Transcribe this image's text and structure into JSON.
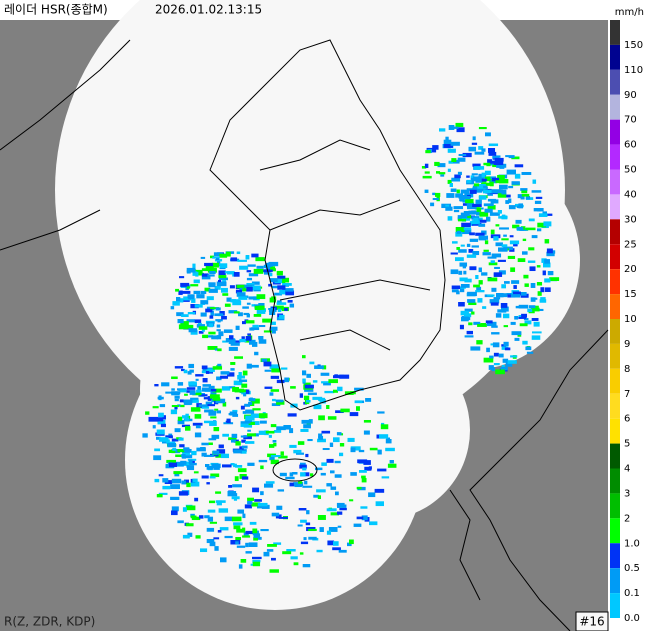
{
  "header": {
    "title": "레이더 HSR(종합M)",
    "time": "2026.01.02.13:15",
    "unit": "mm/h"
  },
  "legend": [
    {
      "label": "150",
      "color": "#333333"
    },
    {
      "label": "110",
      "color": "#000390"
    },
    {
      "label": "90",
      "color": "#4c4eb1"
    },
    {
      "label": "70",
      "color": "#b3b4de"
    },
    {
      "label": "60",
      "color": "#9300e4"
    },
    {
      "label": "50",
      "color": "#b329ff"
    },
    {
      "label": "40",
      "color": "#c969ff"
    },
    {
      "label": "30",
      "color": "#e0a9ff"
    },
    {
      "label": "25",
      "color": "#b40000"
    },
    {
      "label": "20",
      "color": "#d20000"
    },
    {
      "label": "15",
      "color": "#ff3200"
    },
    {
      "label": "10",
      "color": "#ff6600"
    },
    {
      "label": "9",
      "color": "#ccaa00"
    },
    {
      "label": "8",
      "color": "#e0b900"
    },
    {
      "label": "7",
      "color": "#f9cd00"
    },
    {
      "label": "6",
      "color": "#ffdc1f"
    },
    {
      "label": "5",
      "color": "#ffe100"
    },
    {
      "label": "4",
      "color": "#005a00"
    },
    {
      "label": "3",
      "color": "#008c00"
    },
    {
      "label": "2",
      "color": "#00be00"
    },
    {
      "label": "1.0",
      "color": "#00ff00"
    },
    {
      "label": "0.5",
      "color": "#0033f5"
    },
    {
      "label": "0.1",
      "color": "#009bf5"
    },
    {
      "label": "0.0",
      "color": "#00c8ff"
    }
  ],
  "footer": {
    "method": "R(Z, ZDR, KDP)",
    "site": "#16"
  }
}
